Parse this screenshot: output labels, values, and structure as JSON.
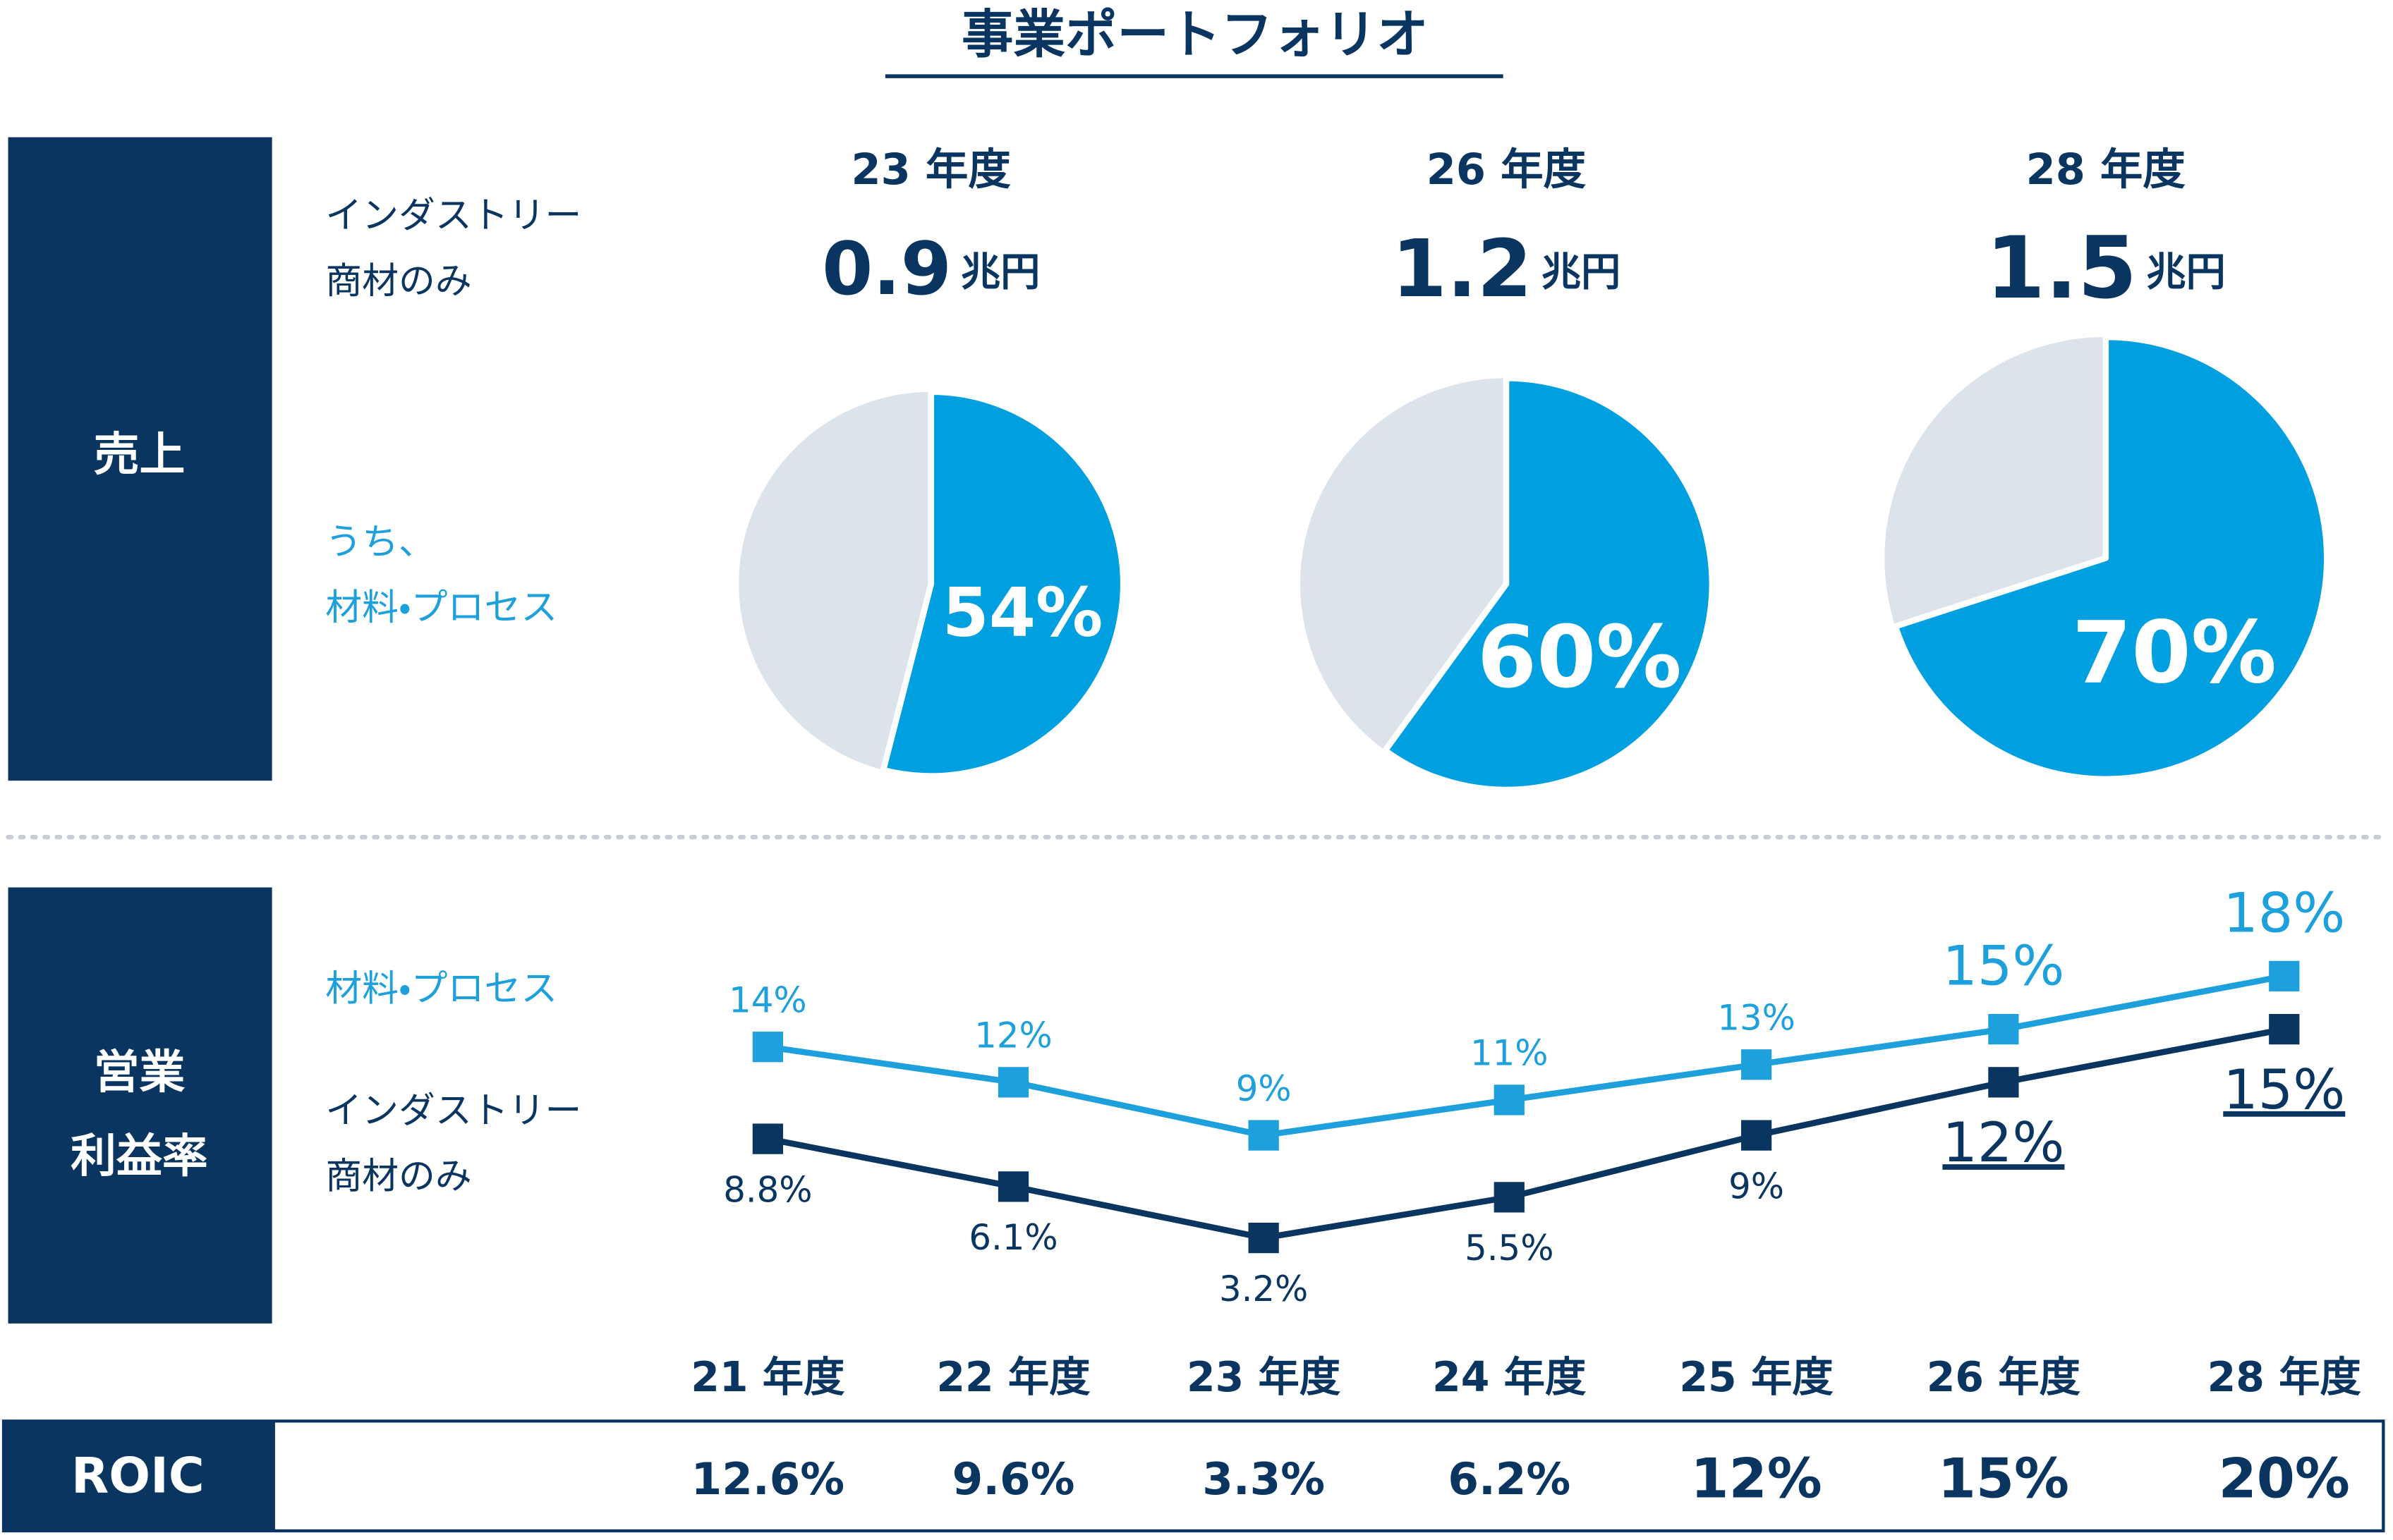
{
  "title": "事業ポートフォリオ",
  "panels": {
    "sales": "売上",
    "profit": "営業\n利益率"
  },
  "pie_legend": {
    "total": "インダストリー\n商材のみ",
    "share": "うち、\n材料・プロセス"
  },
  "chart_data": [
    {
      "type": "pie",
      "title": "23 年度",
      "total": "0.9",
      "unit": "兆円",
      "values": [
        54
      ],
      "value_labels": [
        "54%"
      ],
      "color": "#00a0e0",
      "rest_color": "#dde3eb"
    },
    {
      "type": "pie",
      "title": "26 年度",
      "total": "1.2",
      "unit": "兆円",
      "values": [
        60
      ],
      "value_labels": [
        "60%"
      ],
      "color": "#00a0e0",
      "rest_color": "#dde3eb"
    },
    {
      "type": "pie",
      "title": "28 年度",
      "total": "1.5",
      "unit": "兆円",
      "values": [
        70
      ],
      "value_labels": [
        "70%"
      ],
      "color": "#00a0e0",
      "rest_color": "#dde3eb"
    },
    {
      "type": "line",
      "categories": [
        "21 年度",
        "22 年度",
        "23 年度",
        "24 年度",
        "25 年度",
        "26 年度",
        "28 年度"
      ],
      "series": [
        {
          "name": "材料・プロセス",
          "color": "#1ea0dc",
          "values": [
            14,
            12,
            9,
            11,
            13,
            15,
            18
          ],
          "value_labels": [
            "14%",
            "12%",
            "9%",
            "11%",
            "13%",
            "15%",
            "18%"
          ]
        },
        {
          "name": "インダストリー\n商材のみ",
          "color": "#0a3560",
          "values": [
            8.8,
            6.1,
            3.2,
            5.5,
            9,
            12,
            15
          ],
          "value_labels": [
            "8.8%",
            "6.1%",
            "3.2%",
            "5.5%",
            "9%",
            "12%",
            "15%"
          ]
        }
      ]
    }
  ],
  "roic": {
    "name": "ROIC",
    "cells": [
      "12.6%",
      "9.6%",
      "3.3%",
      "6.2%",
      "12%",
      "15%",
      "20%"
    ]
  }
}
